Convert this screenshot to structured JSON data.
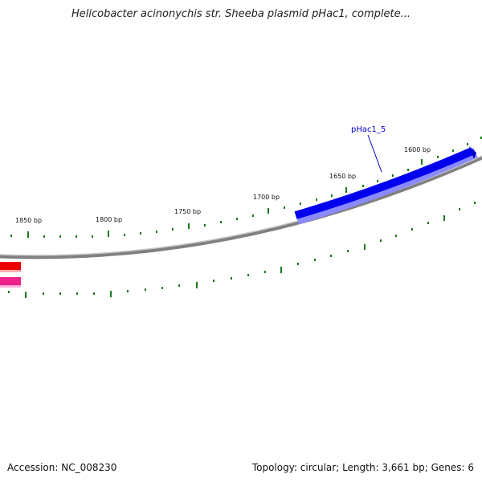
{
  "title": "Helicobacter acinonychis str. Sheeba plasmid pHac1, complete...",
  "accession_label": "Accession: NC_008230",
  "summary_label": "Topology: circular; Length: 3,661 bp; Genes: 6",
  "feature_label": "pHac1_5",
  "ticks": [
    "1600 bp",
    "1650 bp",
    "1700 bp",
    "1750 bp",
    "1800 bp",
    "1850 bp"
  ],
  "colors": {
    "backbone": "#808080",
    "gene_forward": "#0000ee",
    "gene_red": "#ee0000",
    "gene_pink": "#ee2288",
    "tick": "#1a7a1a",
    "label_line": "#0000cc"
  }
}
